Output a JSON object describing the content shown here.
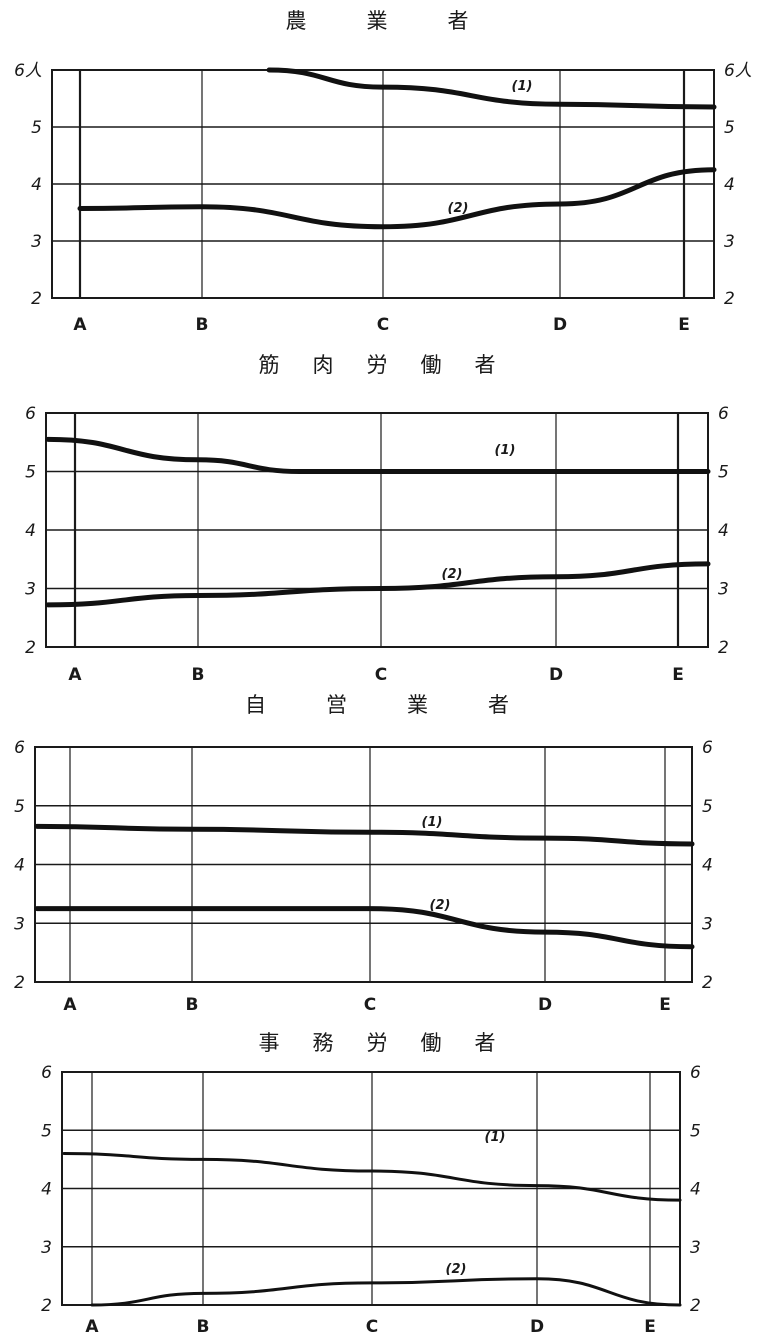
{
  "chart_data": [
    {
      "type": "line",
      "title": "農　　業　　者",
      "categories": [
        "A",
        "B",
        "C",
        "D",
        "E"
      ],
      "y_ticks_left": [
        "6人",
        "5",
        "4",
        "3",
        "2"
      ],
      "y_ticks_right": [
        "6人",
        "5",
        "4",
        "3",
        "2"
      ],
      "ylim": [
        2,
        6
      ],
      "grid": true,
      "series": [
        {
          "name": "(1)",
          "x": [
            "B+",
            "C",
            "D",
            "E+"
          ],
          "values": [
            6.0,
            5.7,
            5.4,
            5.35
          ]
        },
        {
          "name": "(2)",
          "x": [
            "A",
            "B",
            "C",
            "D",
            "E+"
          ],
          "values": [
            3.57,
            3.6,
            3.25,
            3.65,
            4.25
          ]
        }
      ]
    },
    {
      "type": "line",
      "title": "筋　肉　労　働　者",
      "categories": [
        "A",
        "B",
        "C",
        "D",
        "E"
      ],
      "y_ticks_left": [
        "6",
        "5",
        "4",
        "3",
        "2"
      ],
      "y_ticks_right": [
        "6",
        "5",
        "4",
        "3",
        "2"
      ],
      "ylim": [
        2,
        6
      ],
      "grid": true,
      "series": [
        {
          "name": "(1)",
          "x": [
            "A-",
            "B",
            "BC",
            "C",
            "D",
            "E+"
          ],
          "values": [
            5.55,
            5.2,
            5.0,
            5.0,
            5.0,
            5.0
          ]
        },
        {
          "name": "(2)",
          "x": [
            "A-",
            "B",
            "C",
            "D",
            "E+"
          ],
          "values": [
            2.72,
            2.88,
            3.0,
            3.2,
            3.42
          ]
        }
      ]
    },
    {
      "type": "line",
      "title": "自　　営　　業　　者",
      "categories": [
        "A",
        "B",
        "C",
        "D",
        "E"
      ],
      "y_ticks_left": [
        "6",
        "5",
        "4",
        "3",
        "2"
      ],
      "y_ticks_right": [
        "6",
        "5",
        "4",
        "3",
        "2"
      ],
      "ylim": [
        2,
        6
      ],
      "grid": true,
      "series": [
        {
          "name": "(1)",
          "x": [
            "A-",
            "B",
            "C",
            "D",
            "E+"
          ],
          "values": [
            4.65,
            4.6,
            4.55,
            4.45,
            4.35
          ]
        },
        {
          "name": "(2)",
          "x": [
            "A-",
            "B",
            "C",
            "D",
            "E+"
          ],
          "values": [
            3.25,
            3.25,
            3.25,
            2.85,
            2.6
          ]
        }
      ]
    },
    {
      "type": "line",
      "title": "事　務　労　働　者",
      "categories": [
        "A",
        "B",
        "C",
        "D",
        "E"
      ],
      "y_ticks_left": [
        "6",
        "5",
        "4",
        "3",
        "2"
      ],
      "y_ticks_right": [
        "6",
        "5",
        "4",
        "3",
        "2"
      ],
      "ylim": [
        2,
        6
      ],
      "grid": true,
      "series": [
        {
          "name": "(1)",
          "x": [
            "A-",
            "B",
            "C",
            "D",
            "E+"
          ],
          "values": [
            4.6,
            4.5,
            4.3,
            4.05,
            3.8
          ]
        },
        {
          "name": "(2)",
          "x": [
            "A",
            "B",
            "C",
            "D",
            "E+"
          ],
          "values": [
            2.0,
            2.2,
            2.38,
            2.45,
            2.0
          ]
        }
      ]
    }
  ]
}
